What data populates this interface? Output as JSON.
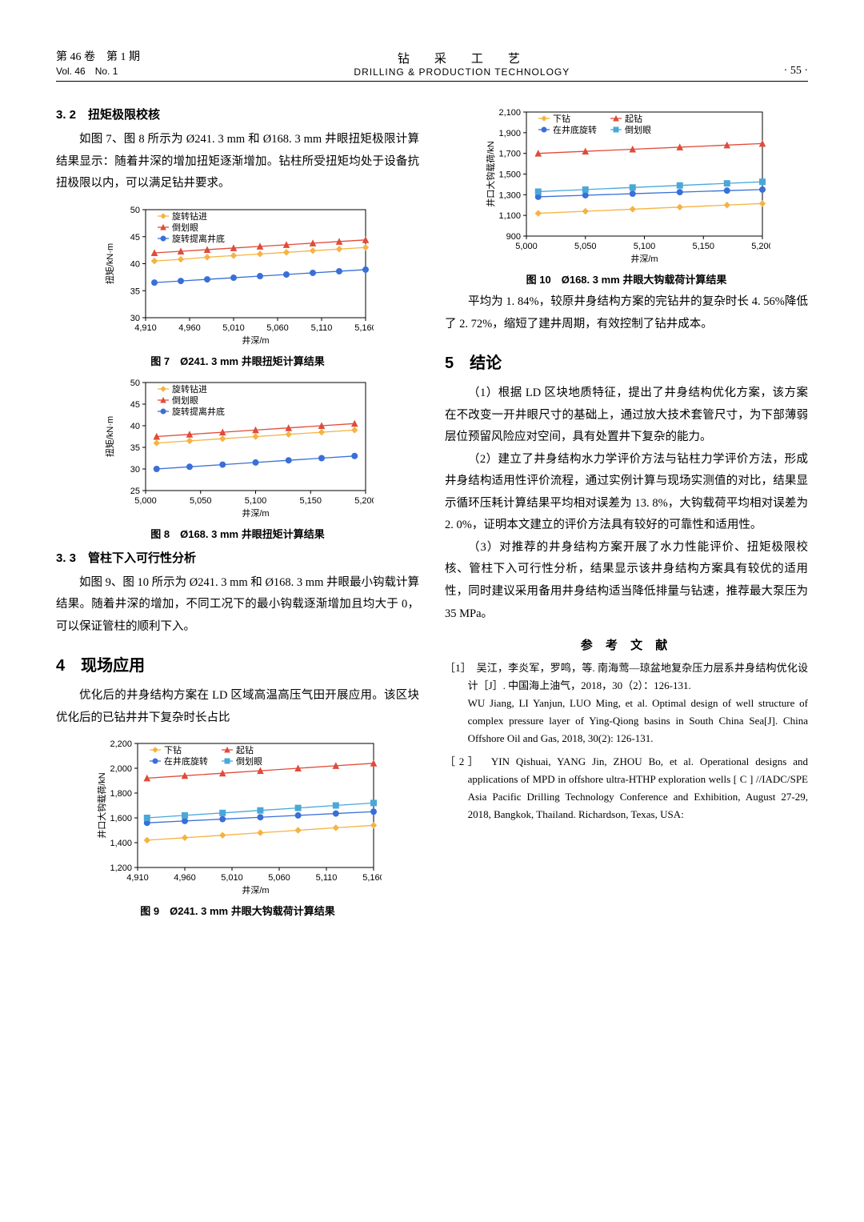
{
  "header": {
    "vol_cn": "第 46 卷　第 1 期",
    "vol_en": "Vol. 46　No. 1",
    "journal_cn": "钻　采　工　艺",
    "journal_en": "DRILLING & PRODUCTION TECHNOLOGY",
    "page": "· 55 ·"
  },
  "s32": {
    "title": "3. 2　扭矩极限校核",
    "p1": "如图 7、图 8 所示为 Ø241. 3 mm 和 Ø168. 3 mm 井眼扭矩极限计算结果显示：随着井深的增加扭矩逐渐增加。钻柱所受扭矩均处于设备抗扭极限以内，可以满足钻井要求。"
  },
  "s33": {
    "title": "3. 3　管柱下入可行性分析",
    "p1": "如图 9、图 10 所示为 Ø241. 3 mm 和 Ø168. 3 mm 井眼最小钩载计算结果。随着井深的增加，不同工况下的最小钩载逐渐增加且均大于 0，可以保证管柱的顺利下入。"
  },
  "s4": {
    "title": "4　现场应用",
    "p1": "优化后的井身结构方案在 LD 区域高温高压气田开展应用。该区块优化后的已钻井井下复杂时长占比"
  },
  "right_p1": "平均为 1. 84%，较原井身结构方案的完钻井的复杂时长 4. 56%降低了 2. 72%，缩短了建井周期，有效控制了钻井成本。",
  "s5": {
    "title": "5　结论",
    "p1": "（1）根据 LD 区块地质特征，提出了井身结构优化方案，该方案在不改变一开井眼尺寸的基础上，通过放大技术套管尺寸，为下部薄弱层位预留风险应对空间，具有处置井下复杂的能力。",
    "p2": "（2）建立了井身结构水力学评价方法与钻柱力学评价方法，形成井身结构适用性评价流程，通过实例计算与现场实测值的对比，结果显示循环压耗计算结果平均相对误差为 13. 8%，大钩载荷平均相对误差为 2. 0%，证明本文建立的评价方法具有较好的可靠性和适用性。",
    "p3": "（3）对推荐的井身结构方案开展了水力性能评价、扭矩极限校核、管柱下入可行性分析，结果显示该井身结构方案具有较优的适用性，同时建议采用备用井身结构适当降低排量与钻速，推荐最大泵压为 35 MPa。"
  },
  "refs": {
    "title": "参 考 文 献",
    "r1_cn": "［1］　吴江，李炎军，罗鸣，等. 南海莺—琼盆地复杂压力层系井身结构优化设计［J］. 中国海上油气，2018，30（2）：126-131.",
    "r1_en": "WU Jiang, LI Yanjun, LUO Ming, et al. Optimal design of well structure of complex pressure layer of Ying-Qiong basins in South China Sea[J]. China Offshore Oil and Gas, 2018, 30(2): 126-131.",
    "r2": "［2］　YIN Qishuai, YANG Jin, ZHOU Bo, et al. Operational designs and applications of MPD in offshore ultra-HTHP exploration wells [ C ] //IADC/SPE Asia Pacific Drilling Technology Conference and Exhibition, August 27-29, 2018, Bangkok, Thailand. Richardson, Texas, USA:"
  },
  "fig7": {
    "caption": "图 7　Ø241. 3 mm 井眼扭矩计算结果",
    "xlabel": "井深/m",
    "ylabel": "扭矩/kN·m",
    "xlim": [
      4910,
      5160
    ],
    "ylim": [
      30,
      50
    ],
    "xticks": [
      4910,
      4960,
      5010,
      5060,
      5110,
      5160
    ],
    "yticks": [
      30,
      35,
      40,
      45,
      50
    ],
    "legend": [
      "旋转钻进",
      "倒划眼",
      "旋转提离井底"
    ],
    "colors": {
      "a": "#f5b342",
      "b": "#e04b3a",
      "c": "#3a6fd8"
    },
    "series_a": {
      "x": [
        4920,
        4950,
        4980,
        5010,
        5040,
        5070,
        5100,
        5130,
        5160
      ],
      "y": [
        40.5,
        40.8,
        41.2,
        41.5,
        41.8,
        42.1,
        42.4,
        42.7,
        43.0
      ]
    },
    "series_b": {
      "x": [
        4920,
        4950,
        4980,
        5010,
        5040,
        5070,
        5100,
        5130,
        5160
      ],
      "y": [
        42.0,
        42.3,
        42.6,
        42.9,
        43.2,
        43.5,
        43.8,
        44.1,
        44.4
      ]
    },
    "series_c": {
      "x": [
        4920,
        4950,
        4980,
        5010,
        5040,
        5070,
        5100,
        5130,
        5160
      ],
      "y": [
        36.5,
        36.8,
        37.1,
        37.4,
        37.7,
        38.0,
        38.3,
        38.6,
        38.9
      ]
    }
  },
  "fig8": {
    "caption": "图 8　Ø168. 3 mm 井眼扭矩计算结果",
    "xlabel": "井深/m",
    "ylabel": "扭矩/kN·m",
    "xlim": [
      5000,
      5200
    ],
    "ylim": [
      25,
      50
    ],
    "xticks": [
      5000,
      5050,
      5100,
      5150,
      5200
    ],
    "yticks": [
      25,
      30,
      35,
      40,
      45,
      50
    ],
    "legend": [
      "旋转钻进",
      "倒划眼",
      "旋转提离井底"
    ],
    "colors": {
      "a": "#f5b342",
      "b": "#e04b3a",
      "c": "#3a6fd8"
    },
    "series_a": {
      "x": [
        5010,
        5040,
        5070,
        5100,
        5130,
        5160,
        5190
      ],
      "y": [
        36.0,
        36.5,
        37.0,
        37.5,
        38.0,
        38.5,
        39.0
      ]
    },
    "series_b": {
      "x": [
        5010,
        5040,
        5070,
        5100,
        5130,
        5160,
        5190
      ],
      "y": [
        37.5,
        38.0,
        38.5,
        39.0,
        39.5,
        40.0,
        40.5
      ]
    },
    "series_c": {
      "x": [
        5010,
        5040,
        5070,
        5100,
        5130,
        5160,
        5190
      ],
      "y": [
        30.0,
        30.5,
        31.0,
        31.5,
        32.0,
        32.5,
        33.0
      ]
    }
  },
  "fig9": {
    "caption": "图 9　Ø241. 3 mm 井眼大钩载荷计算结果",
    "xlabel": "井深/m",
    "ylabel": "井口大钩载荷/kN",
    "xlim": [
      4910,
      5160
    ],
    "ylim": [
      1200,
      2200
    ],
    "xticks": [
      4910,
      4960,
      5010,
      5060,
      5110,
      5160
    ],
    "yticks": [
      1200,
      1400,
      1600,
      1800,
      2000,
      2200
    ],
    "legend": [
      "下钻",
      "起钻",
      "在井底旋转",
      "倒划眼"
    ],
    "colors": {
      "a": "#f5b342",
      "b": "#e04b3a",
      "c": "#3a6fd8",
      "d": "#4aa8d8"
    },
    "series_a": {
      "x": [
        4920,
        4960,
        5000,
        5040,
        5080,
        5120,
        5160
      ],
      "y": [
        1420,
        1440,
        1460,
        1480,
        1500,
        1520,
        1540
      ]
    },
    "series_b": {
      "x": [
        4920,
        4960,
        5000,
        5040,
        5080,
        5120,
        5160
      ],
      "y": [
        1920,
        1940,
        1960,
        1980,
        2000,
        2020,
        2040
      ]
    },
    "series_c": {
      "x": [
        4920,
        4960,
        5000,
        5040,
        5080,
        5120,
        5160
      ],
      "y": [
        1560,
        1575,
        1590,
        1605,
        1620,
        1635,
        1650
      ]
    },
    "series_d": {
      "x": [
        4920,
        4960,
        5000,
        5040,
        5080,
        5120,
        5160
      ],
      "y": [
        1600,
        1620,
        1640,
        1660,
        1680,
        1700,
        1720
      ]
    }
  },
  "fig10": {
    "caption": "图 10　Ø168. 3 mm 井眼大钩载荷计算结果",
    "xlabel": "井深/m",
    "ylabel": "井口大钩载荷/kN",
    "xlim": [
      5000,
      5200
    ],
    "ylim": [
      900,
      2100
    ],
    "xticks": [
      5000,
      5050,
      5100,
      5150,
      5200
    ],
    "yticks": [
      900,
      1100,
      1300,
      1500,
      1700,
      1900,
      2100
    ],
    "legend": [
      "下钻",
      "起钻",
      "在井底旋转",
      "倒划眼"
    ],
    "colors": {
      "a": "#f5b342",
      "b": "#e04b3a",
      "c": "#3a6fd8",
      "d": "#4aa8d8"
    },
    "series_a": {
      "x": [
        5010,
        5050,
        5090,
        5130,
        5170,
        5200
      ],
      "y": [
        1120,
        1140,
        1160,
        1180,
        1200,
        1215
      ]
    },
    "series_b": {
      "x": [
        5010,
        5050,
        5090,
        5130,
        5170,
        5200
      ],
      "y": [
        1700,
        1720,
        1740,
        1760,
        1780,
        1795
      ]
    },
    "series_c": {
      "x": [
        5010,
        5050,
        5090,
        5130,
        5170,
        5200
      ],
      "y": [
        1280,
        1295,
        1310,
        1325,
        1340,
        1350
      ]
    },
    "series_d": {
      "x": [
        5010,
        5050,
        5090,
        5130,
        5170,
        5200
      ],
      "y": [
        1330,
        1350,
        1370,
        1390,
        1410,
        1425
      ]
    }
  }
}
